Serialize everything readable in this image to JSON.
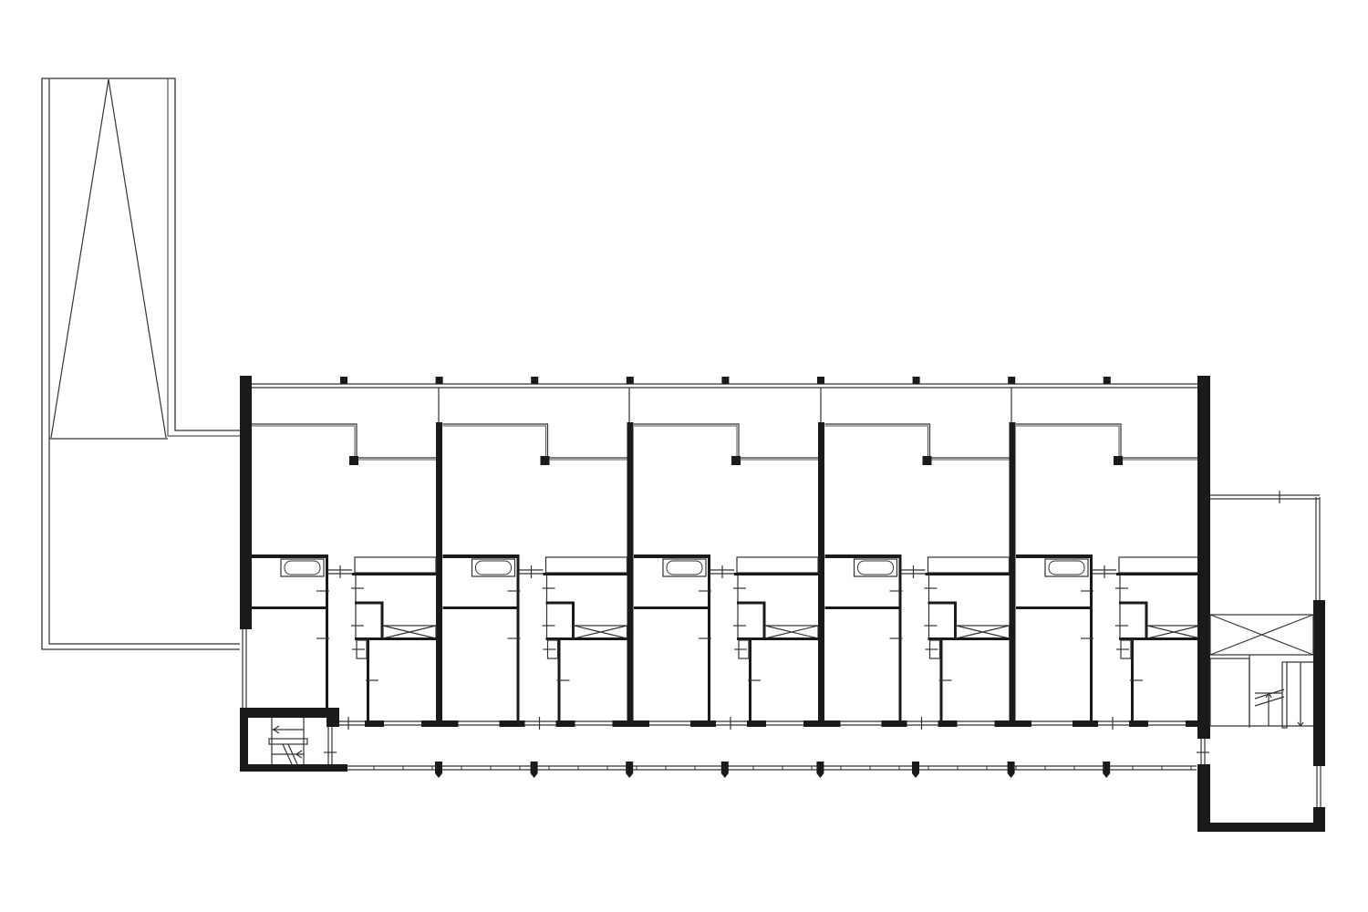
{
  "colors": {
    "background": "#ffffff",
    "wall": "#1a1a1a",
    "line": "#333333",
    "thin_line": "#555555"
  }
}
